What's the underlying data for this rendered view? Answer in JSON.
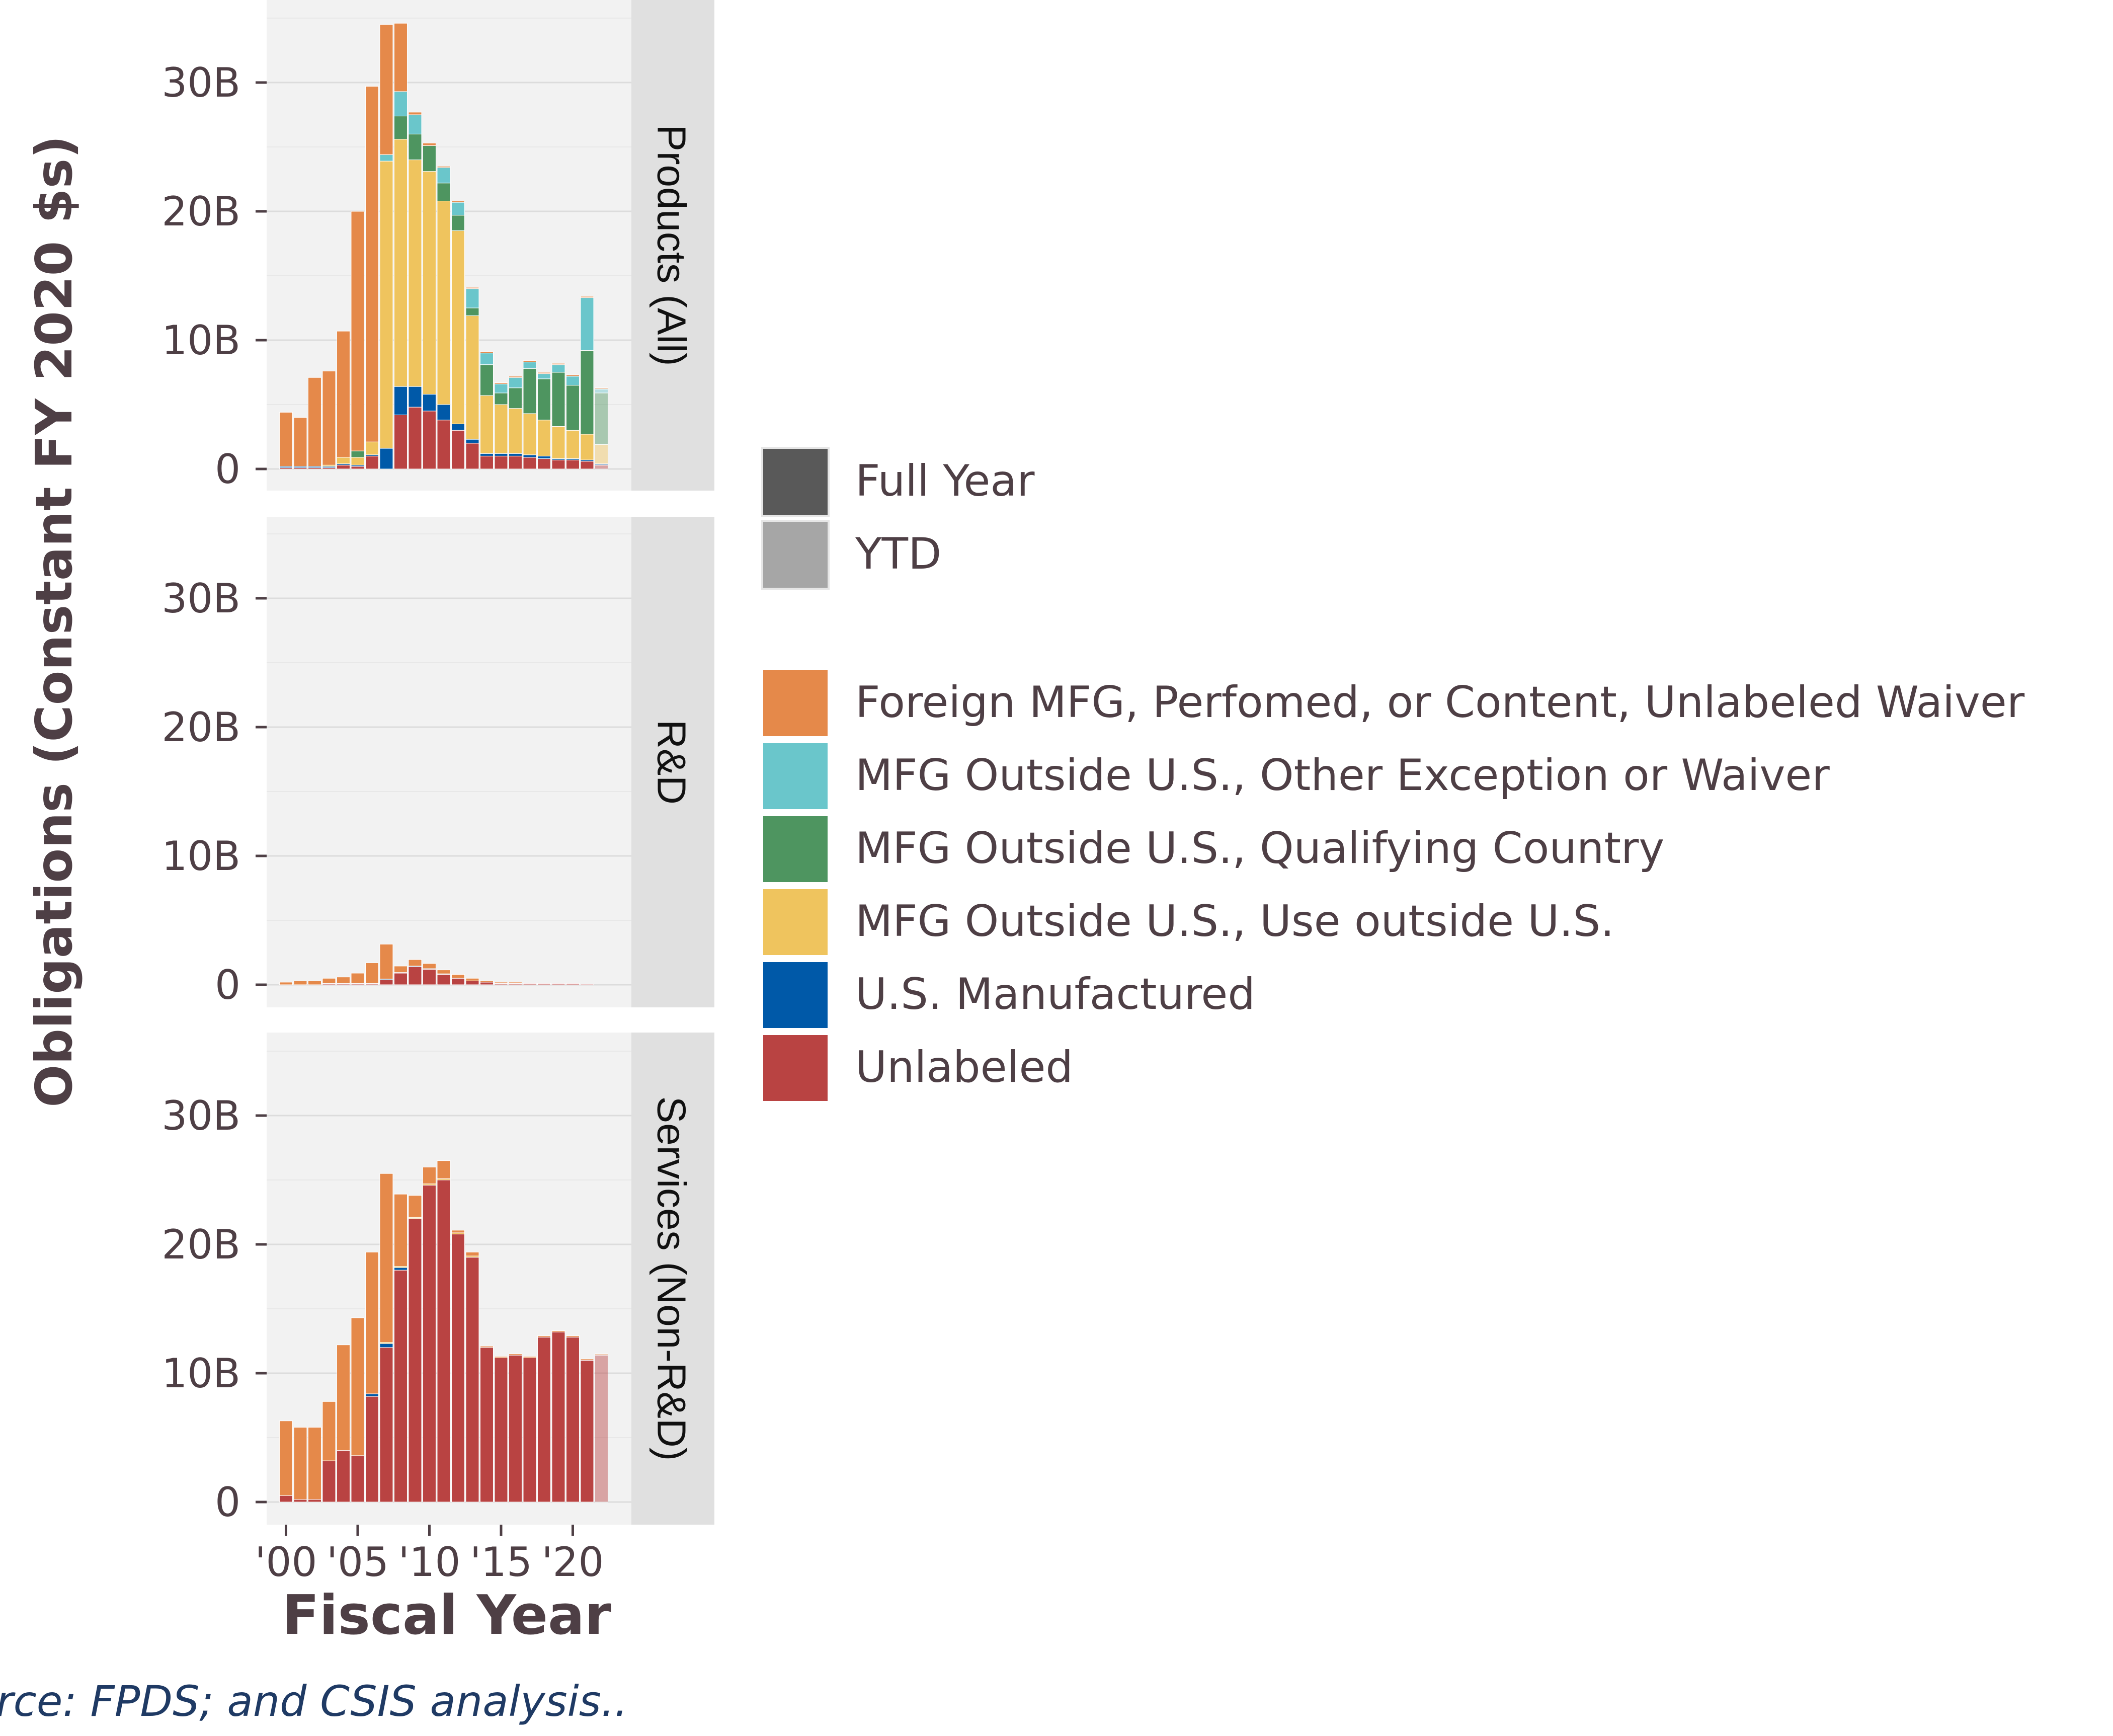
{
  "chart_data": {
    "type": "bar",
    "stacked": true,
    "xlabel": "Fiscal Year",
    "ylabel": "Obligations (Constant FY 2020 $s)",
    "ylim": [
      0,
      35
    ],
    "y_ticks": [
      0,
      10,
      20,
      30
    ],
    "y_tick_labels": [
      "0",
      "10B",
      "20B",
      "30B"
    ],
    "x_ticks": [
      2000,
      2005,
      2010,
      2015,
      2020
    ],
    "x_tick_labels": [
      "'00",
      "'05",
      "'10",
      "'15",
      "'20"
    ],
    "x": [
      2000,
      2001,
      2002,
      2003,
      2004,
      2005,
      2006,
      2007,
      2008,
      2009,
      2010,
      2011,
      2012,
      2013,
      2014,
      2015,
      2016,
      2017,
      2018,
      2019,
      2020,
      2021,
      2022
    ],
    "ytd_year": 2022,
    "grid": true,
    "source": "Source: FPDS; and CSIS analysis..",
    "alpha_legend": {
      "title": "",
      "items": [
        {
          "label": "Full Year",
          "color": "#595959"
        },
        {
          "label": "YTD",
          "color": "#a6a6a6"
        }
      ]
    },
    "series_order": [
      "Unlabeled",
      "U.S. Manufactured",
      "MFG Outside U.S., Use outside U.S.",
      "MFG Outside U.S., Qualifying Country",
      "MFG Outside U.S., Other Exception or Waiver",
      "Foreign MFG, Perfomed, or Content, Unlabeled Waiver"
    ],
    "legend": [
      {
        "label": "Foreign MFG, Perfomed, or Content, Unlabeled Waiver",
        "color": "#e5894a"
      },
      {
        "label": "MFG Outside U.S., Other Exception or Waiver",
        "color": "#6ac6cb"
      },
      {
        "label": "MFG Outside U.S., Qualifying Country",
        "color": "#4e9560"
      },
      {
        "label": "MFG Outside U.S., Use outside U.S.",
        "color": "#efc45e"
      },
      {
        "label": "U.S. Manufactured",
        "color": "#0059a8"
      },
      {
        "label": "Unlabeled",
        "color": "#b94342"
      }
    ],
    "panels": [
      {
        "label": "Products (All)",
        "series": [
          {
            "name": "Unlabeled",
            "values": [
              0.1,
              0.1,
              0.1,
              0.1,
              0.3,
              0.2,
              1.0,
              0.0,
              4.2,
              4.8,
              4.5,
              3.8,
              3.0,
              2.0,
              1.0,
              1.0,
              1.0,
              0.9,
              0.8,
              0.7,
              0.7,
              0.6,
              0.3
            ]
          },
          {
            "name": "U.S. Manufactured",
            "values": [
              0.1,
              0.1,
              0.1,
              0.1,
              0.1,
              0.1,
              0.1,
              1.6,
              2.2,
              1.6,
              1.3,
              1.2,
              0.5,
              0.3,
              0.2,
              0.2,
              0.2,
              0.2,
              0.2,
              0.1,
              0.1,
              0.1,
              0.1
            ]
          },
          {
            "name": "MFG Outside U.S., Use outside U.S.",
            "values": [
              0.0,
              0.0,
              0.0,
              0.1,
              0.5,
              0.6,
              1.0,
              22.3,
              19.2,
              17.6,
              17.3,
              15.8,
              15.0,
              9.6,
              4.5,
              3.8,
              3.5,
              3.2,
              2.8,
              2.5,
              2.2,
              2.0,
              1.5
            ]
          },
          {
            "name": "MFG Outside U.S., Qualifying Country",
            "values": [
              0.0,
              0.0,
              0.0,
              0.0,
              0.0,
              0.5,
              0.0,
              0.0,
              1.8,
              2.0,
              2.0,
              1.4,
              1.2,
              0.6,
              2.4,
              0.9,
              1.6,
              3.5,
              3.2,
              4.2,
              3.5,
              6.5,
              4.0
            ]
          },
          {
            "name": "MFG Outside U.S., Other Exception or Waiver",
            "values": [
              0.0,
              0.0,
              0.0,
              0.0,
              0.0,
              0.0,
              0.0,
              0.5,
              1.9,
              1.5,
              0.0,
              1.2,
              1.0,
              1.5,
              0.9,
              0.7,
              0.8,
              0.5,
              0.4,
              0.6,
              0.7,
              4.1,
              0.3
            ]
          },
          {
            "name": "Foreign MFG, Perfomed, or Content, Unlabeled Waiver",
            "values": [
              4.2,
              3.8,
              6.9,
              7.3,
              9.8,
              18.6,
              27.6,
              10.1,
              5.3,
              0.2,
              0.2,
              0.1,
              0.1,
              0.1,
              0.1,
              0.1,
              0.1,
              0.1,
              0.1,
              0.1,
              0.1,
              0.1,
              0.1
            ]
          }
        ]
      },
      {
        "label": "R&D",
        "series": [
          {
            "name": "Unlabeled",
            "values": [
              0.0,
              0.0,
              0.0,
              0.1,
              0.1,
              0.1,
              0.1,
              0.4,
              0.9,
              1.4,
              1.2,
              0.8,
              0.5,
              0.3,
              0.2,
              0.1,
              0.1,
              0.1,
              0.1,
              0.1,
              0.1,
              0.05,
              0.0
            ]
          },
          {
            "name": "U.S. Manufactured",
            "values": [
              0.0,
              0.0,
              0.0,
              0.0,
              0.0,
              0.0,
              0.0,
              0.05,
              0.05,
              0.05,
              0.05,
              0.05,
              0.0,
              0.0,
              0.0,
              0.0,
              0.0,
              0.0,
              0.0,
              0.0,
              0.0,
              0.0,
              0.0
            ]
          },
          {
            "name": "MFG Outside U.S., Use outside U.S.",
            "values": [
              0.0,
              0.0,
              0.0,
              0.0,
              0.0,
              0.0,
              0.0,
              0.0,
              0.0,
              0.0,
              0.0,
              0.0,
              0.0,
              0.0,
              0.0,
              0.0,
              0.0,
              0.0,
              0.0,
              0.0,
              0.0,
              0.0,
              0.0
            ]
          },
          {
            "name": "MFG Outside U.S., Qualifying Country",
            "values": [
              0.0,
              0.0,
              0.0,
              0.0,
              0.0,
              0.0,
              0.0,
              0.0,
              0.0,
              0.0,
              0.0,
              0.0,
              0.0,
              0.0,
              0.0,
              0.0,
              0.0,
              0.0,
              0.0,
              0.0,
              0.0,
              0.0,
              0.0
            ]
          },
          {
            "name": "MFG Outside U.S., Other Exception or Waiver",
            "values": [
              0.0,
              0.0,
              0.0,
              0.0,
              0.0,
              0.0,
              0.0,
              0.0,
              0.0,
              0.0,
              0.0,
              0.0,
              0.0,
              0.0,
              0.0,
              0.0,
              0.0,
              0.0,
              0.0,
              0.0,
              0.0,
              0.0,
              0.0
            ]
          },
          {
            "name": "Foreign MFG, Perfomed, or Content, Unlabeled Waiver",
            "values": [
              0.2,
              0.3,
              0.3,
              0.4,
              0.5,
              0.8,
              1.6,
              2.7,
              0.5,
              0.5,
              0.4,
              0.3,
              0.3,
              0.2,
              0.1,
              0.1,
              0.1,
              0.0,
              0.0,
              0.0,
              0.0,
              0.0,
              0.0
            ]
          }
        ]
      },
      {
        "label": "Services (Non-R&D)",
        "series": [
          {
            "name": "Unlabeled",
            "values": [
              0.5,
              0.2,
              0.2,
              3.2,
              4.0,
              3.6,
              8.2,
              12.0,
              18.0,
              22.0,
              24.6,
              25.0,
              20.8,
              19.0,
              12.0,
              11.2,
              11.4,
              11.2,
              12.8,
              13.2,
              12.8,
              11.0,
              11.4
            ]
          },
          {
            "name": "U.S. Manufactured",
            "values": [
              0.0,
              0.0,
              0.0,
              0.0,
              0.0,
              0.0,
              0.2,
              0.3,
              0.2,
              0.0,
              0.0,
              0.0,
              0.0,
              0.0,
              0.0,
              0.0,
              0.0,
              0.0,
              0.0,
              0.0,
              0.0,
              0.0,
              0.0
            ]
          },
          {
            "name": "MFG Outside U.S., Use outside U.S.",
            "values": [
              0.0,
              0.0,
              0.0,
              0.0,
              0.0,
              0.0,
              0.0,
              0.1,
              0.1,
              0.1,
              0.1,
              0.1,
              0.1,
              0.1,
              0.0,
              0.0,
              0.0,
              0.0,
              0.0,
              0.0,
              0.0,
              0.0,
              0.0
            ]
          },
          {
            "name": "MFG Outside U.S., Qualifying Country",
            "values": [
              0.0,
              0.0,
              0.0,
              0.0,
              0.0,
              0.0,
              0.0,
              0.0,
              0.0,
              0.0,
              0.0,
              0.0,
              0.0,
              0.0,
              0.0,
              0.0,
              0.0,
              0.0,
              0.0,
              0.0,
              0.0,
              0.0,
              0.0
            ]
          },
          {
            "name": "MFG Outside U.S., Other Exception or Waiver",
            "values": [
              0.0,
              0.0,
              0.0,
              0.0,
              0.0,
              0.0,
              0.0,
              0.0,
              0.0,
              0.0,
              0.0,
              0.0,
              0.0,
              0.0,
              0.0,
              0.0,
              0.0,
              0.0,
              0.0,
              0.0,
              0.0,
              0.0,
              0.0
            ]
          },
          {
            "name": "Foreign MFG, Perfomed, or Content, Unlabeled Waiver",
            "values": [
              5.8,
              5.6,
              5.6,
              4.6,
              8.2,
              10.7,
              11.0,
              13.1,
              5.6,
              1.7,
              1.3,
              1.4,
              0.2,
              0.3,
              0.1,
              0.1,
              0.1,
              0.1,
              0.1,
              0.1,
              0.1,
              0.1,
              0.1
            ]
          }
        ]
      }
    ]
  }
}
